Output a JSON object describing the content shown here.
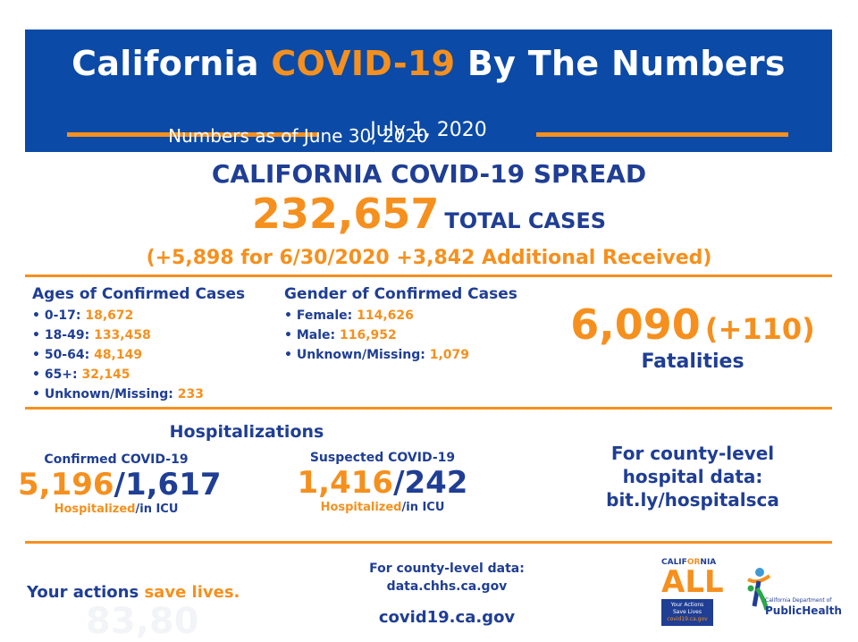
{
  "header": {
    "title_part1": "California ",
    "title_highlight": "COVID-19",
    "title_part2": " By The Numbers",
    "date": "July 1, 2020",
    "as_of": "Numbers as of June 30, 2020"
  },
  "spread": {
    "title": "CALIFORNIA COVID-19 SPREAD",
    "total_cases": "232,657",
    "total_cases_label": "TOTAL CASES",
    "delta": "(+5,898 for 6/30/2020 +3,842 Additional Received)"
  },
  "ages": {
    "title": "Ages of Confirmed Cases",
    "items": [
      {
        "label": "• 0-17: ",
        "value": "18,672"
      },
      {
        "label": "• 18-49: ",
        "value": "133,458"
      },
      {
        "label": "• 50-64: ",
        "value": "48,149"
      },
      {
        "label": "• 65+: ",
        "value": "32,145"
      },
      {
        "label": "• Unknown/Missing: ",
        "value": "233"
      }
    ]
  },
  "gender": {
    "title": "Gender of Confirmed Cases",
    "items": [
      {
        "label": "• Female: ",
        "value": "114,626"
      },
      {
        "label": "• Male: ",
        "value": "116,952"
      },
      {
        "label": "• Unknown/Missing: ",
        "value": "1,079"
      }
    ]
  },
  "fatalities": {
    "count": "6,090",
    "increase": "(+110)",
    "label": "Fatalities"
  },
  "hospitalizations": {
    "title": "Hospitalizations",
    "confirmed": {
      "label": "Confirmed COVID-19",
      "hospitalized": "5,196",
      "icu": "1,617",
      "sub_hospitalized": "Hospitalized",
      "sub_icu": "/in ICU"
    },
    "suspected": {
      "label": "Suspected COVID-19",
      "hospitalized": "1,416",
      "icu": "242",
      "sub_hospitalized": "Hospitalized",
      "sub_icu": "/in ICU"
    },
    "county_info": [
      "For county-level",
      "hospital data:",
      "bit.ly/hospitalsca"
    ]
  },
  "footer": {
    "tagline_part1": "Your actions ",
    "tagline_part2": "save lives.",
    "ghost_text": "83,80",
    "county_data_line1": "For county-level data:",
    "county_data_line2": "data.chhs.ca.gov",
    "website": "covid19.ca.gov"
  },
  "logos": {
    "ca_all_top_1": "CALIF",
    "ca_all_top_2": "OR",
    "ca_all_top_3": "NIA",
    "ca_all_main": "ALL",
    "ca_all_box_1": "Your Actions",
    "ca_all_box_2": "Save Lives",
    "ca_all_box_3": "covid19.ca.gov",
    "cdph_line1": "California Department of",
    "cdph_line2": "PublicHealth"
  },
  "colors": {
    "navy": "#1f3e94",
    "header_blue": "#0b4aa6",
    "orange": "#f5901e"
  }
}
